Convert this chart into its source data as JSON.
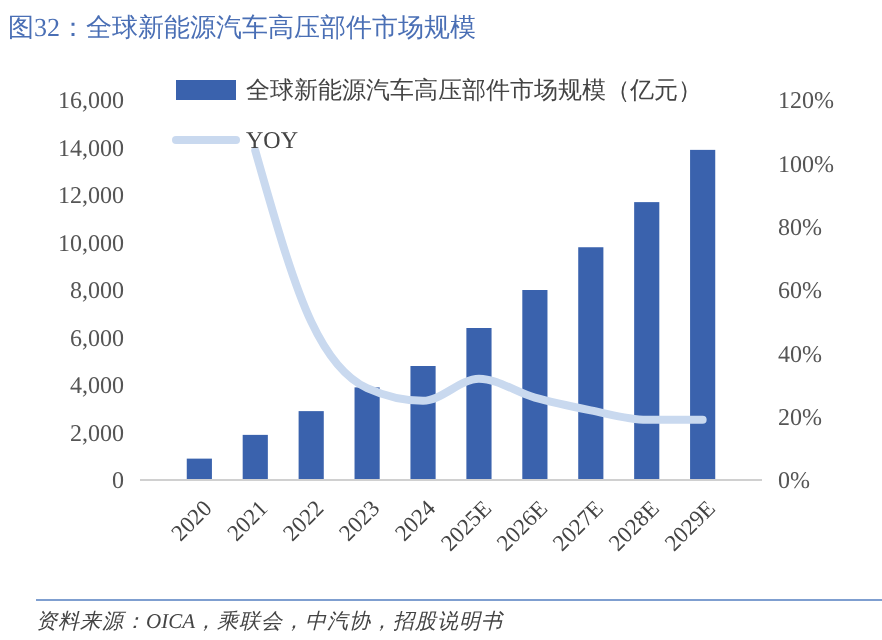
{
  "chart_data": {
    "type": "bar",
    "title": "图32：全球新能源汽车高压部件市场规模",
    "categories": [
      "2020",
      "2021",
      "2022",
      "2023",
      "2024",
      "2025E",
      "2026E",
      "2027E",
      "2028E",
      "2029E"
    ],
    "series": [
      {
        "name": "全球新能源汽车高压部件市场规模（亿元）",
        "color": "#3a62ad",
        "values": [
          900,
          1900,
          2900,
          3900,
          4800,
          6400,
          8000,
          9800,
          11700,
          13900
        ]
      },
      {
        "name": "YOY",
        "type": "line",
        "axis": "y2",
        "color": "#c9d9ef",
        "values": [
          null,
          104,
          50,
          29,
          25,
          32,
          26,
          22,
          19,
          19
        ]
      }
    ],
    "ylim": [
      0,
      16000
    ],
    "yticks": [
      {
        "value": 0,
        "label": "0"
      },
      {
        "value": 2000,
        "label": "2,000"
      },
      {
        "value": 4000,
        "label": "4,000"
      },
      {
        "value": 6000,
        "label": "6,000"
      },
      {
        "value": 8000,
        "label": "8,000"
      },
      {
        "value": 10000,
        "label": "10,000"
      },
      {
        "value": 12000,
        "label": "12,000"
      },
      {
        "value": 14000,
        "label": "14,000"
      },
      {
        "value": 16000,
        "label": "16,000"
      }
    ],
    "y2lim": [
      0,
      120
    ],
    "y2ticks": [
      {
        "value": 0,
        "label": "0%"
      },
      {
        "value": 20,
        "label": "20%"
      },
      {
        "value": 40,
        "label": "40%"
      },
      {
        "value": 60,
        "label": "60%"
      },
      {
        "value": 80,
        "label": "80%"
      },
      {
        "value": 100,
        "label": "100%"
      },
      {
        "value": 120,
        "label": "120%"
      }
    ],
    "legend": "top",
    "grid": false,
    "annotations": [
      "资料来源：OICA，乘联会，中汽协，招股说明书"
    ]
  }
}
